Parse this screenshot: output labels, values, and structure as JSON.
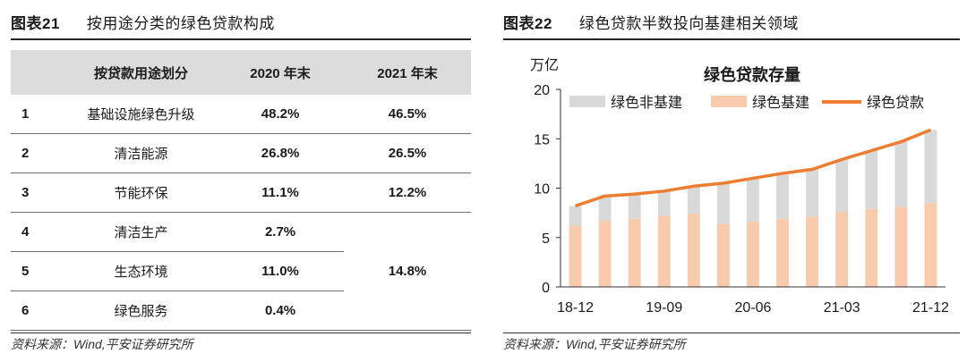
{
  "left": {
    "figure_number": "图表21",
    "figure_title": "按用途分类的绿色贷款构成",
    "table": {
      "headers": [
        "",
        "按贷款用途划分",
        "2020 年末",
        "2021 年末"
      ],
      "rows": [
        {
          "idx": "1",
          "use": "基础设施绿色升级",
          "y2020": "48.2%",
          "y2021": "46.5%"
        },
        {
          "idx": "2",
          "use": "清洁能源",
          "y2020": "26.8%",
          "y2021": "26.5%"
        },
        {
          "idx": "3",
          "use": "节能环保",
          "y2020": "11.1%",
          "y2021": "12.2%"
        },
        {
          "idx": "4",
          "use": "清洁生产",
          "y2020": "2.7%",
          "y2021": ""
        },
        {
          "idx": "5",
          "use": "生态环境",
          "y2020": "11.0%",
          "y2021": "14.8%"
        },
        {
          "idx": "6",
          "use": "绿色服务",
          "y2020": "0.4%",
          "y2021": ""
        }
      ]
    },
    "source": "资料来源：Wind,平安证券研究所"
  },
  "right": {
    "figure_number": "图表22",
    "figure_title": "绿色贷款半数投向基建相关领域",
    "source": "资料来源：Wind,平安证券研究所"
  },
  "chart_data": {
    "type": "bar",
    "title": "绿色贷款存量",
    "ylabel": "万亿",
    "ylim": [
      0,
      20
    ],
    "yticks": [
      0,
      5,
      10,
      15,
      20
    ],
    "x_tick_labels": [
      "18-12",
      "19-09",
      "20-06",
      "21-03",
      "21-12"
    ],
    "categories": [
      "18-12",
      "19-03",
      "19-06",
      "19-09",
      "19-12",
      "20-03",
      "20-06",
      "20-09",
      "20-12",
      "21-03",
      "21-06",
      "21-09",
      "21-12"
    ],
    "series": [
      {
        "name": "绿色非基建",
        "type": "stacked-bar",
        "color": "#d9d9d9",
        "values": [
          2.0,
          2.5,
          2.5,
          2.5,
          2.8,
          4.1,
          4.4,
          4.6,
          4.8,
          5.3,
          5.9,
          6.6,
          7.4
        ]
      },
      {
        "name": "绿色基建",
        "type": "stacked-bar",
        "color": "#f8cbad",
        "values": [
          6.2,
          6.7,
          6.9,
          7.2,
          7.4,
          6.4,
          6.6,
          6.9,
          7.1,
          7.6,
          7.9,
          8.1,
          8.5
        ]
      },
      {
        "name": "绿色贷款",
        "type": "line",
        "color": "#ed7d31",
        "values": [
          8.2,
          9.2,
          9.4,
          9.7,
          10.2,
          10.5,
          11.0,
          11.5,
          11.9,
          12.9,
          13.8,
          14.7,
          15.9
        ]
      }
    ],
    "legend_position": "top"
  }
}
